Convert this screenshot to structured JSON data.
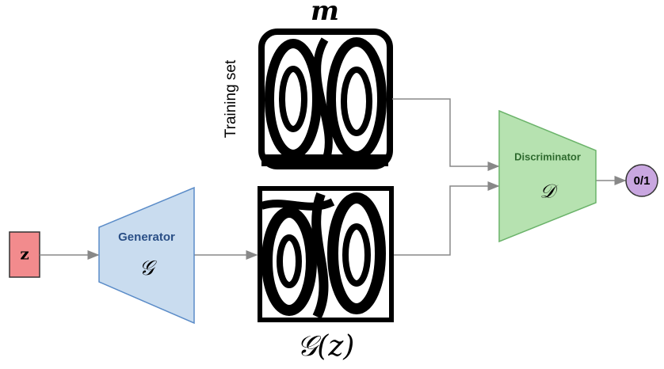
{
  "title": "m",
  "training_label": "Training set",
  "input": "z",
  "generator": {
    "label": "Generator",
    "symbol": "𝒢"
  },
  "generated_label": "𝒢(z)",
  "discriminator": {
    "label": "Discriminator",
    "symbol": "𝒟"
  },
  "output": "0/1"
}
